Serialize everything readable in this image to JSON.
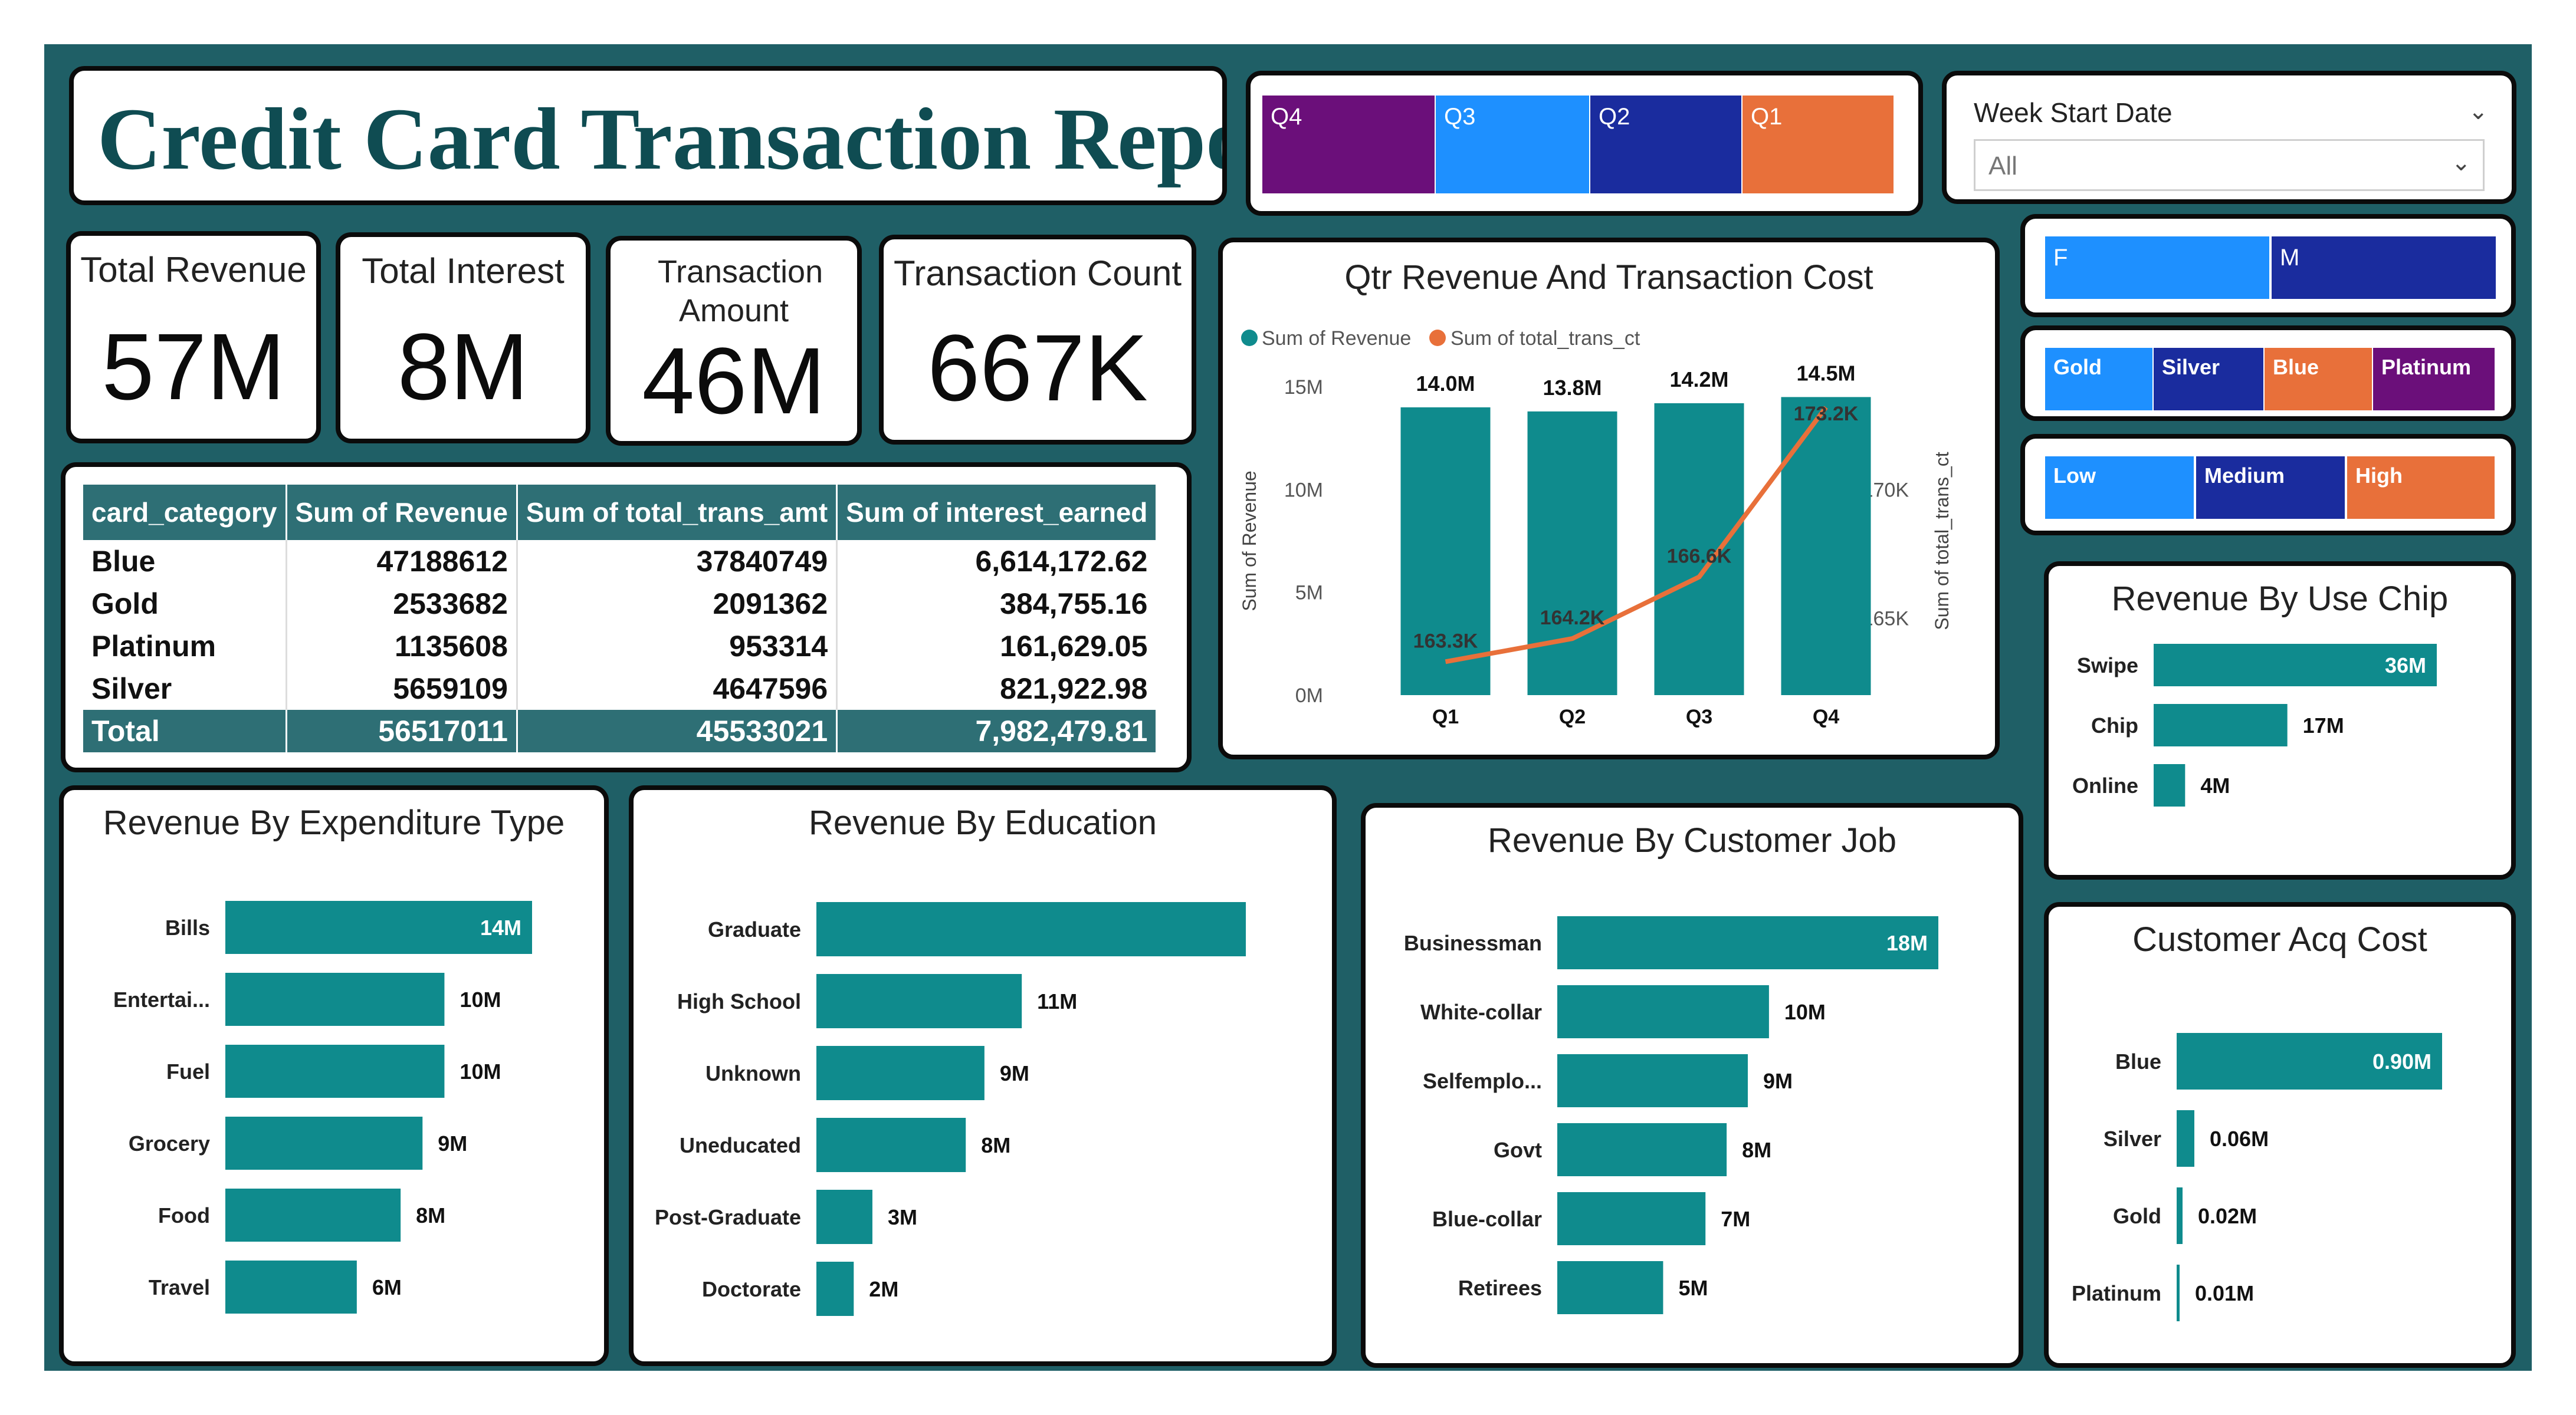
{
  "report": {
    "title": "Credit Card Transaction Report"
  },
  "kpis": [
    {
      "label": "Total Revenue",
      "value": "57M"
    },
    {
      "label": "Total Interest",
      "value": "8M"
    },
    {
      "label": "Transaction Amount",
      "value": "46M"
    },
    {
      "label": "Transaction Count",
      "value": "667K"
    }
  ],
  "slicers": {
    "quarter": [
      {
        "label": "Q4",
        "color": "#6b0f7a"
      },
      {
        "label": "Q3",
        "color": "#1e90ff"
      },
      {
        "label": "Q2",
        "color": "#1a2c9e"
      },
      {
        "label": "Q1",
        "color": "#e8703a"
      }
    ],
    "gender": [
      {
        "label": "F",
        "color": "#1e90ff"
      },
      {
        "label": "M",
        "color": "#1a2c9e"
      }
    ],
    "card": [
      {
        "label": "Gold",
        "color": "#1e90ff"
      },
      {
        "label": "Silver",
        "color": "#1a2c9e"
      },
      {
        "label": "Blue",
        "color": "#e8703a"
      },
      {
        "label": "Platinum",
        "color": "#6b0f7a"
      }
    ],
    "income": [
      {
        "label": "Low",
        "color": "#1e90ff"
      },
      {
        "label": "Medium",
        "color": "#1a2c9e"
      },
      {
        "label": "High",
        "color": "#e8703a"
      }
    ],
    "week": {
      "label": "Week Start Date",
      "value": "All"
    }
  },
  "matrix": {
    "headers": [
      "card_category",
      "Sum of Revenue",
      "Sum of total_trans_amt",
      "Sum of interest_earned"
    ],
    "rows": [
      [
        "Blue",
        "47188612",
        "37840749",
        "6,614,172.62"
      ],
      [
        "Gold",
        "2533682",
        "2091362",
        "384,755.16"
      ],
      [
        "Platinum",
        "1135608",
        "953314",
        "161,629.05"
      ],
      [
        "Silver",
        "5659109",
        "4647596",
        "821,922.98"
      ]
    ],
    "total": [
      "Total",
      "56517011",
      "45533021",
      "7,982,479.81"
    ]
  },
  "colors": {
    "bar": "#0f8b8d",
    "line": "#e8703a",
    "frame": "#1f5f66"
  },
  "chart_data": [
    {
      "id": "qtr",
      "type": "bar",
      "title": "Qtr Revenue And Transaction Cost",
      "categories": [
        "Q1",
        "Q2",
        "Q3",
        "Q4"
      ],
      "series": [
        {
          "name": "Sum of Revenue",
          "values": [
            14.0,
            13.8,
            14.2,
            14.5
          ],
          "labels": [
            "14.0M",
            "13.8M",
            "14.2M",
            "14.5M"
          ]
        },
        {
          "name": "Sum of total_trans_ct",
          "type": "line",
          "values": [
            163.3,
            164.2,
            166.6,
            173.2
          ],
          "labels": [
            "163.3K",
            "164.2K",
            "166.6K",
            "173.2K"
          ]
        }
      ],
      "ylabel": "Sum of Revenue",
      "y2label": "Sum of total_trans_ct",
      "yticks": [
        "0M",
        "5M",
        "10M",
        "15M"
      ],
      "y2ticks": [
        "165K",
        "170K"
      ],
      "ylim": [
        0,
        15
      ],
      "y2lim": [
        162,
        174
      ]
    },
    {
      "id": "usechip",
      "type": "bar",
      "title": "Revenue By Use Chip",
      "categories": [
        "Swipe",
        "Chip",
        "Online"
      ],
      "values": [
        36,
        17,
        4
      ],
      "labels": [
        "36M",
        "17M",
        "4M"
      ]
    },
    {
      "id": "acq",
      "type": "bar",
      "title": "Customer Acq Cost",
      "categories": [
        "Blue",
        "Silver",
        "Gold",
        "Platinum"
      ],
      "values": [
        0.9,
        0.06,
        0.02,
        0.01
      ],
      "labels": [
        "0.90M",
        "0.06M",
        "0.02M",
        "0.01M"
      ]
    },
    {
      "id": "exp",
      "type": "bar",
      "title": "Revenue By Expenditure Type",
      "categories": [
        "Bills",
        "Entertai...",
        "Fuel",
        "Grocery",
        "Food",
        "Travel"
      ],
      "values": [
        14,
        10,
        10,
        9,
        8,
        6
      ],
      "labels": [
        "14M",
        "10M",
        "10M",
        "9M",
        "8M",
        "6M"
      ]
    },
    {
      "id": "edu",
      "type": "bar",
      "title": "Revenue By Education",
      "categories": [
        "Graduate",
        "High School",
        "Unknown",
        "Uneducated",
        "Post-Graduate",
        "Doctorate"
      ],
      "values": [
        23,
        11,
        9,
        8,
        3,
        2
      ],
      "labels": [
        "",
        "11M",
        "9M",
        "8M",
        "3M",
        "2M"
      ]
    },
    {
      "id": "job",
      "type": "bar",
      "title": "Revenue By Customer Job",
      "categories": [
        "Businessman",
        "White-collar",
        "Selfemplo...",
        "Govt",
        "Blue-collar",
        "Retirees"
      ],
      "values": [
        18,
        10,
        9,
        8,
        7,
        5
      ],
      "labels": [
        "18M",
        "10M",
        "9M",
        "8M",
        "7M",
        "5M"
      ]
    }
  ]
}
